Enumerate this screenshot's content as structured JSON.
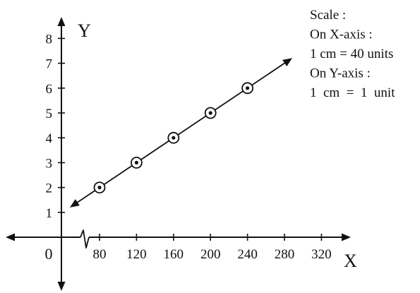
{
  "chart_data": {
    "type": "line",
    "x_axis": {
      "name": "X",
      "ticks": [
        80,
        120,
        160,
        200,
        240,
        280,
        320
      ],
      "break_near_origin": true
    },
    "y_axis": {
      "name": "Y",
      "ticks": [
        1,
        2,
        3,
        4,
        5,
        6,
        7,
        8
      ]
    },
    "origin_label": "0",
    "series": [
      {
        "points": [
          {
            "x": 80,
            "y": 2
          },
          {
            "x": 120,
            "y": 3
          },
          {
            "x": 160,
            "y": 4
          },
          {
            "x": 200,
            "y": 5
          },
          {
            "x": 240,
            "y": 6
          }
        ],
        "line_extends_both_ways": true,
        "marker": "circled-dot"
      }
    ],
    "scale_note": [
      "Scale :",
      "On X-axis :",
      "1 cm = 40 units",
      "On Y-axis :",
      "1  cm  =  1  unit"
    ],
    "grid": false,
    "colors": {
      "ink": "#111111",
      "background": "#ffffff"
    }
  }
}
